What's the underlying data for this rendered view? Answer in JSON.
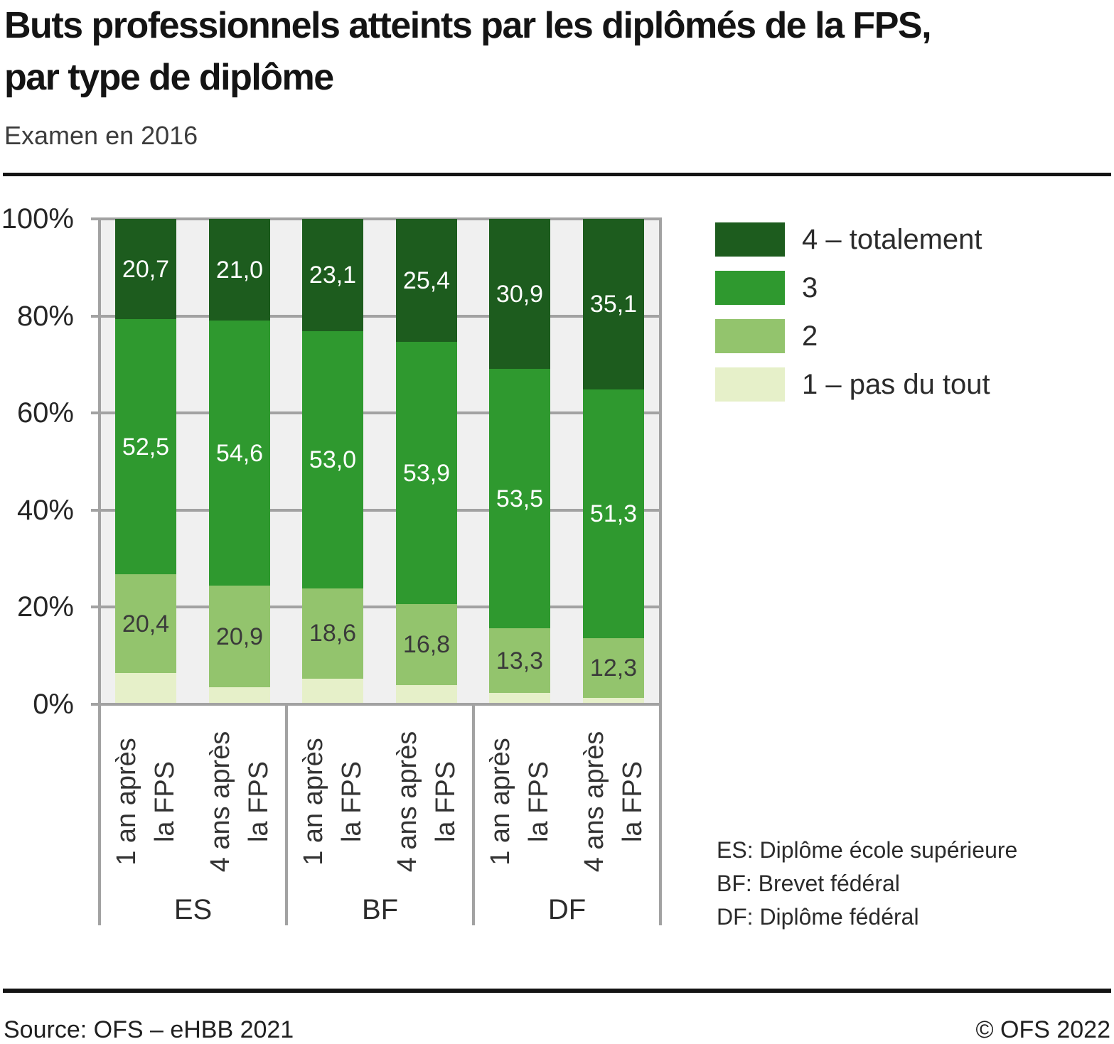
{
  "header": {
    "title_lines": [
      "Buts professionnels atteints par les diplômés de la FPS,",
      "par type de diplôme"
    ],
    "subtitle": "Examen en 2016"
  },
  "notes": [
    "ES: Diplôme école supérieure",
    "BF: Brevet fédéral",
    "DF: Diplôme fédéral"
  ],
  "footer": {
    "source": "Source: OFS – eHBB 2021",
    "copyright": "© OFS 2022"
  },
  "chart_data": {
    "type": "bar",
    "stacked": true,
    "unit": "percent",
    "ylim": [
      0,
      100
    ],
    "grid": true,
    "legend_position": "right",
    "y_ticks": [
      "0%",
      "20%",
      "40%",
      "60%",
      "80%",
      "100%"
    ],
    "groups": [
      {
        "label": "ES",
        "bars": [
          0,
          1
        ]
      },
      {
        "label": "BF",
        "bars": [
          2,
          3
        ]
      },
      {
        "label": "DF",
        "bars": [
          4,
          5
        ]
      }
    ],
    "categories": [
      [
        "1 an après",
        "la FPS"
      ],
      [
        "4 ans après",
        "la FPS"
      ],
      [
        "1 an après",
        "la FPS"
      ],
      [
        "4 ans après",
        "la FPS"
      ],
      [
        "1 an après",
        "la FPS"
      ],
      [
        "4 ans après",
        "la FPS"
      ]
    ],
    "series": [
      {
        "name": "4 – totalement",
        "color": "#1d5c1e",
        "text_color": "#ffffff",
        "values": [
          20.7,
          21.0,
          23.1,
          25.4,
          30.9,
          35.1
        ],
        "labels": [
          "20,7",
          "21,0",
          "23,1",
          "25,4",
          "30,9",
          "35,1"
        ]
      },
      {
        "name": "3",
        "color": "#2f992f",
        "text_color": "#ffffff",
        "values": [
          52.5,
          54.6,
          53.0,
          53.9,
          53.5,
          51.3
        ],
        "labels": [
          "52,5",
          "54,6",
          "53,0",
          "53,9",
          "53,5",
          "51,3"
        ]
      },
      {
        "name": "2",
        "color": "#93c46d",
        "text_color": "#3a3a3a",
        "values": [
          20.4,
          20.9,
          18.6,
          16.8,
          13.3,
          12.3
        ],
        "labels": [
          "20,4",
          "20,9",
          "18,6",
          "16,8",
          "13,3",
          "12,3"
        ]
      },
      {
        "name": "1 – pas du tout",
        "color": "#e6f0c9",
        "text_color": "#3a3a3a",
        "values": [
          6.4,
          3.5,
          5.3,
          3.9,
          2.3,
          1.3
        ],
        "labels": [
          "",
          "",
          "",
          "",
          "",
          ""
        ]
      }
    ]
  }
}
